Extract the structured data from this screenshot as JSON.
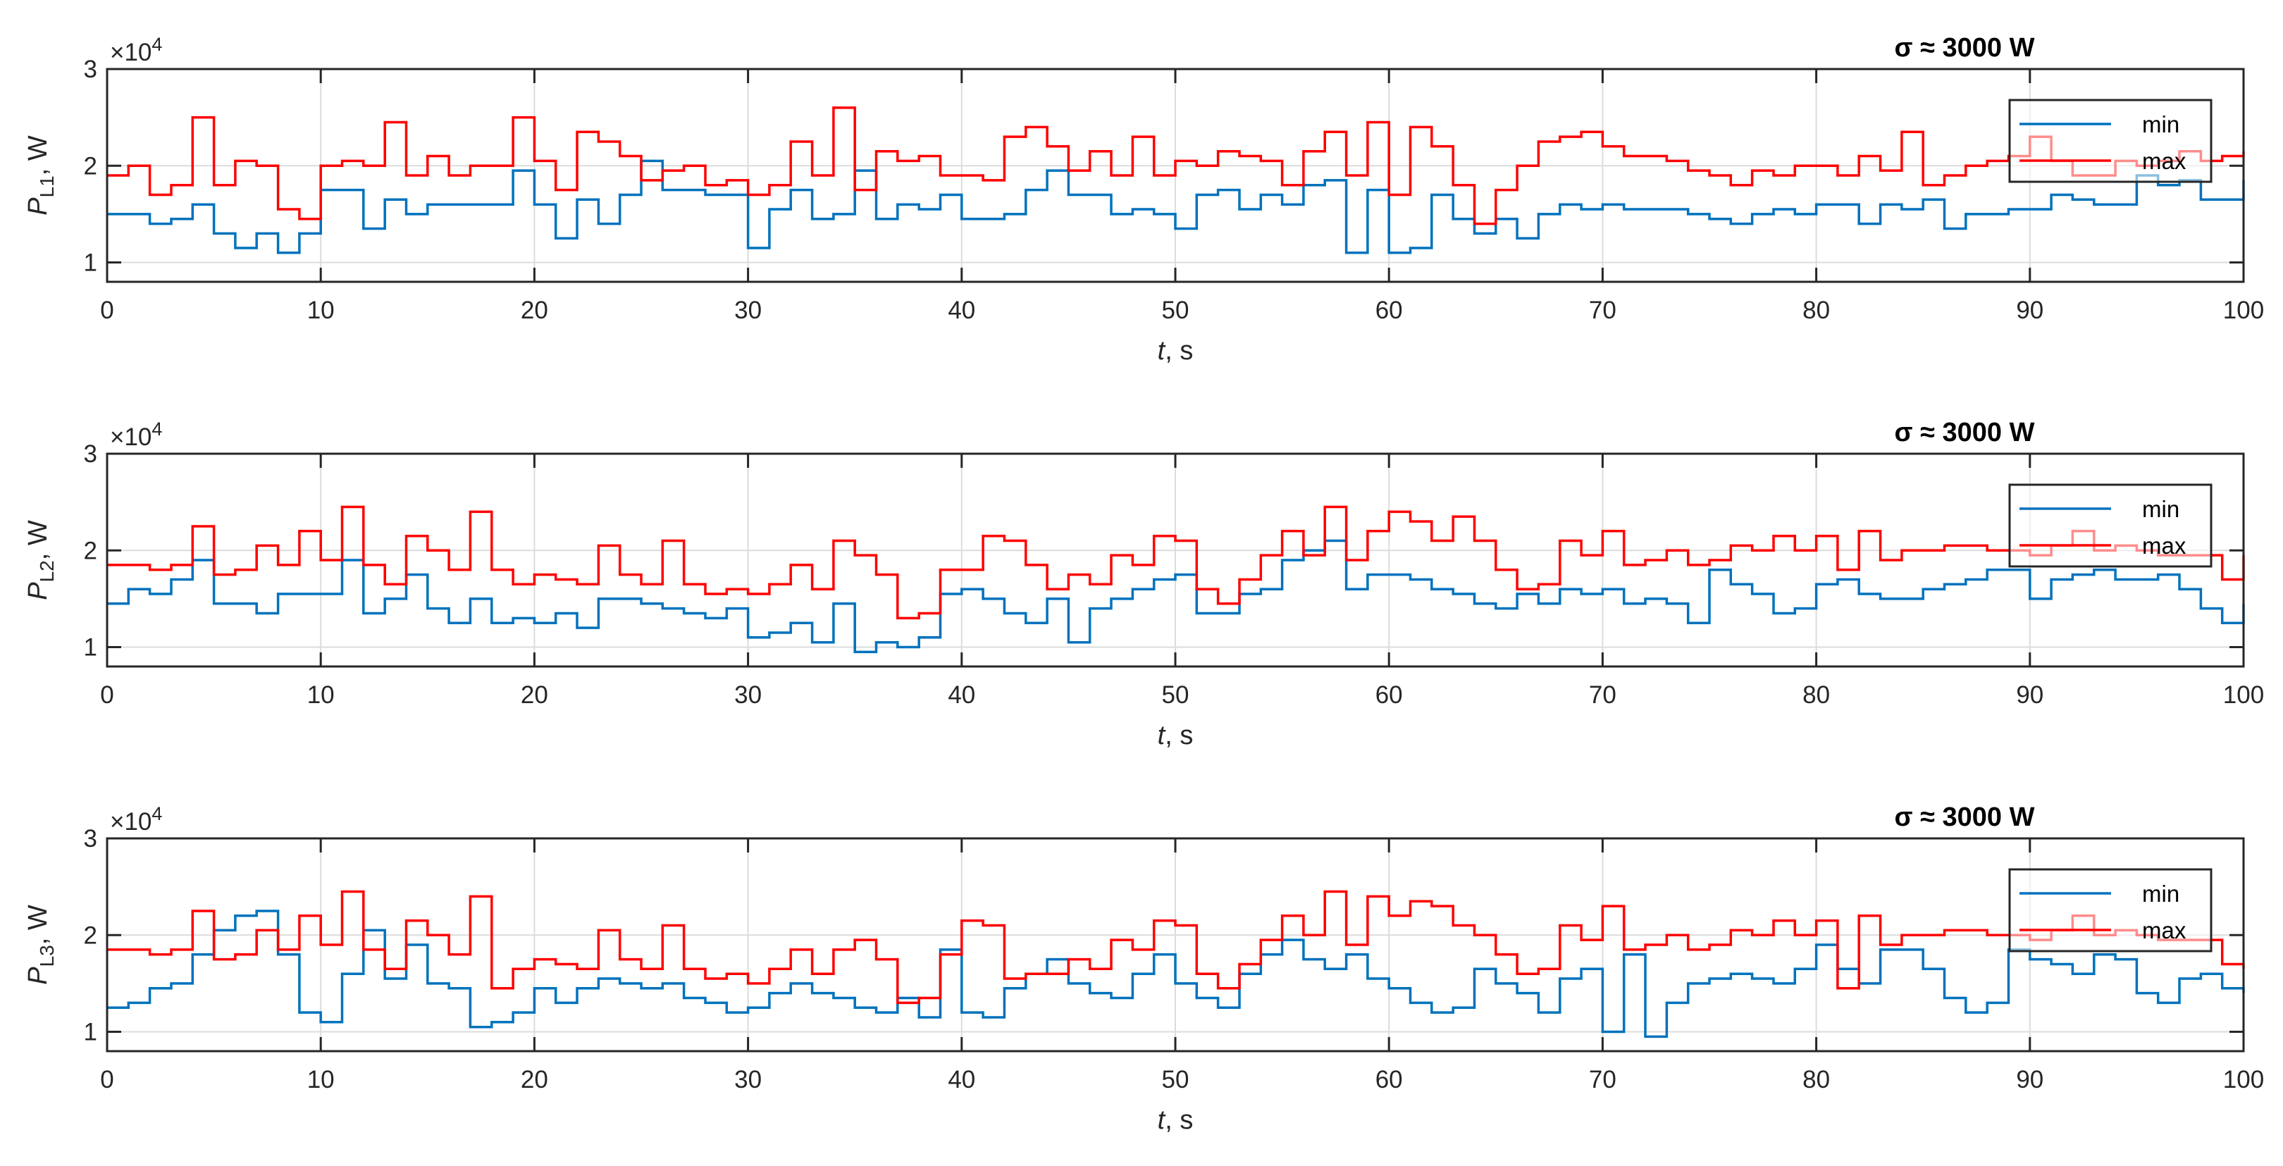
{
  "chart_data": [
    {
      "type": "line",
      "title": "σ ≈  3000 W",
      "ylabel_main": "P",
      "ylabel_sub": "L1",
      "ylabel_unit": ", W",
      "xlabel_var": "t",
      "xlabel_unit": ", s",
      "xlim": [
        0,
        100
      ],
      "ylim": [
        0.8,
        3.0
      ],
      "y_multiplier": "×10",
      "y_multiplier_exp": "4",
      "xticks": [
        "0",
        "10",
        "20",
        "30",
        "40",
        "50",
        "60",
        "70",
        "80",
        "90",
        "100"
      ],
      "yticks": [
        "1",
        "2",
        "3"
      ],
      "legend": {
        "entries": [
          "min",
          "max"
        ],
        "location": "northeast"
      },
      "grid": true,
      "series": [
        {
          "name": "min",
          "color": "#0072BD",
          "step": 1,
          "values": [
            1.5,
            1.5,
            1.4,
            1.45,
            1.6,
            1.3,
            1.15,
            1.3,
            1.1,
            1.3,
            1.75,
            1.75,
            1.35,
            1.65,
            1.5,
            1.6,
            1.6,
            1.6,
            1.6,
            1.95,
            1.6,
            1.25,
            1.65,
            1.4,
            1.7,
            2.05,
            1.75,
            1.75,
            1.7,
            1.7,
            1.15,
            1.55,
            1.75,
            1.45,
            1.5,
            1.95,
            1.45,
            1.6,
            1.55,
            1.7,
            1.45,
            1.45,
            1.5,
            1.75,
            1.95,
            1.7,
            1.7,
            1.5,
            1.55,
            1.5,
            1.35,
            1.7,
            1.75,
            1.55,
            1.7,
            1.6,
            1.8,
            1.85,
            1.1,
            1.75,
            1.1,
            1.15,
            1.7,
            1.45,
            1.3,
            1.45,
            1.25,
            1.5,
            1.6,
            1.55,
            1.6,
            1.55,
            1.55,
            1.55,
            1.5,
            1.45,
            1.4,
            1.5,
            1.55,
            1.5,
            1.6,
            1.6,
            1.4,
            1.6,
            1.55,
            1.65,
            1.35,
            1.5,
            1.5,
            1.55,
            1.55,
            1.7,
            1.65,
            1.6,
            1.6,
            1.9,
            1.8,
            1.85,
            1.65,
            1.65,
            1.85
          ]
        },
        {
          "name": "max",
          "color": "#FF0000",
          "step": 1,
          "values": [
            1.9,
            2.0,
            1.7,
            1.8,
            2.5,
            1.8,
            2.05,
            2.0,
            1.55,
            1.45,
            2.0,
            2.05,
            2.0,
            2.45,
            1.9,
            2.1,
            1.9,
            2.0,
            2.0,
            2.5,
            2.05,
            1.75,
            2.35,
            2.25,
            2.1,
            1.85,
            1.95,
            2.0,
            1.8,
            1.85,
            1.7,
            1.8,
            2.25,
            1.9,
            2.6,
            1.75,
            2.15,
            2.05,
            2.1,
            1.9,
            1.9,
            1.85,
            2.3,
            2.4,
            2.2,
            1.95,
            2.15,
            1.9,
            2.3,
            1.9,
            2.05,
            2.0,
            2.15,
            2.1,
            2.05,
            1.8,
            2.15,
            2.35,
            1.9,
            2.45,
            1.7,
            2.4,
            2.2,
            1.8,
            1.4,
            1.75,
            2.0,
            2.25,
            2.3,
            2.35,
            2.2,
            2.1,
            2.1,
            2.05,
            1.95,
            1.9,
            1.8,
            1.95,
            1.9,
            2.0,
            2.0,
            1.9,
            2.1,
            1.95,
            2.35,
            1.8,
            1.9,
            2.0,
            2.05,
            2.1,
            2.3,
            2.05,
            1.9,
            1.9,
            2.05,
            2.0,
            2.05,
            2.15,
            2.05,
            2.1,
            2.15
          ]
        }
      ]
    },
    {
      "type": "line",
      "title": "σ ≈  3000 W",
      "ylabel_main": "P",
      "ylabel_sub": "L2",
      "ylabel_unit": ", W",
      "xlabel_var": "t",
      "xlabel_unit": ", s",
      "xlim": [
        0,
        100
      ],
      "ylim": [
        0.8,
        3.0
      ],
      "y_multiplier": "×10",
      "y_multiplier_exp": "4",
      "xticks": [
        "0",
        "10",
        "20",
        "30",
        "40",
        "50",
        "60",
        "70",
        "80",
        "90",
        "100"
      ],
      "yticks": [
        "1",
        "2",
        "3"
      ],
      "legend": {
        "entries": [
          "min",
          "max"
        ],
        "location": "northeast"
      },
      "grid": true,
      "series": [
        {
          "name": "min",
          "color": "#0072BD",
          "step": 1,
          "values": [
            1.45,
            1.6,
            1.55,
            1.7,
            1.9,
            1.45,
            1.45,
            1.35,
            1.55,
            1.55,
            1.55,
            1.9,
            1.35,
            1.5,
            1.75,
            1.4,
            1.25,
            1.5,
            1.25,
            1.3,
            1.25,
            1.35,
            1.2,
            1.5,
            1.5,
            1.45,
            1.4,
            1.35,
            1.3,
            1.4,
            1.1,
            1.15,
            1.25,
            1.05,
            1.45,
            0.95,
            1.05,
            1.0,
            1.1,
            1.55,
            1.6,
            1.5,
            1.35,
            1.25,
            1.5,
            1.05,
            1.4,
            1.5,
            1.6,
            1.7,
            1.75,
            1.35,
            1.35,
            1.55,
            1.6,
            1.9,
            2.0,
            2.1,
            1.6,
            1.75,
            1.75,
            1.7,
            1.6,
            1.55,
            1.45,
            1.4,
            1.55,
            1.45,
            1.6,
            1.55,
            1.6,
            1.45,
            1.5,
            1.45,
            1.25,
            1.8,
            1.65,
            1.55,
            1.35,
            1.4,
            1.65,
            1.7,
            1.55,
            1.5,
            1.5,
            1.6,
            1.65,
            1.7,
            1.8,
            1.8,
            1.5,
            1.7,
            1.75,
            1.8,
            1.7,
            1.7,
            1.75,
            1.6,
            1.4,
            1.25,
            1.45
          ]
        },
        {
          "name": "max",
          "color": "#FF0000",
          "step": 1,
          "values": [
            1.85,
            1.85,
            1.8,
            1.85,
            2.25,
            1.75,
            1.8,
            2.05,
            1.85,
            2.2,
            1.9,
            2.45,
            1.85,
            1.65,
            2.15,
            2.0,
            1.8,
            2.4,
            1.8,
            1.65,
            1.75,
            1.7,
            1.65,
            2.05,
            1.75,
            1.65,
            2.1,
            1.65,
            1.55,
            1.6,
            1.55,
            1.65,
            1.85,
            1.6,
            2.1,
            1.95,
            1.75,
            1.3,
            1.35,
            1.8,
            1.8,
            2.15,
            2.1,
            1.85,
            1.6,
            1.75,
            1.65,
            1.95,
            1.85,
            2.15,
            2.1,
            1.6,
            1.45,
            1.7,
            1.95,
            2.2,
            1.95,
            2.45,
            1.9,
            2.2,
            2.4,
            2.3,
            2.1,
            2.35,
            2.1,
            1.8,
            1.6,
            1.65,
            2.1,
            1.95,
            2.2,
            1.85,
            1.9,
            2.0,
            1.85,
            1.9,
            2.05,
            2.0,
            2.15,
            2.0,
            2.15,
            1.8,
            2.2,
            1.9,
            2.0,
            2.0,
            2.05,
            2.05,
            2.0,
            2.0,
            1.95,
            2.05,
            2.2,
            2.0,
            2.05,
            2.0,
            1.95,
            1.95,
            1.95,
            1.7,
            1.95
          ]
        }
      ]
    },
    {
      "type": "line",
      "title": "σ ≈  3000 W",
      "ylabel_main": "P",
      "ylabel_sub": "L3",
      "ylabel_unit": ", W",
      "xlabel_var": "t",
      "xlabel_unit": ", s",
      "xlim": [
        0,
        100
      ],
      "ylim": [
        0.8,
        3.0
      ],
      "y_multiplier": "×10",
      "y_multiplier_exp": "4",
      "xticks": [
        "0",
        "10",
        "20",
        "30",
        "40",
        "50",
        "60",
        "70",
        "80",
        "90",
        "100"
      ],
      "yticks": [
        "1",
        "2",
        "3"
      ],
      "legend": {
        "entries": [
          "min",
          "max"
        ],
        "location": "northeast"
      },
      "grid": true,
      "series": [
        {
          "name": "min",
          "color": "#0072BD",
          "step": 1,
          "values": [
            1.25,
            1.3,
            1.45,
            1.5,
            1.8,
            2.05,
            2.2,
            2.25,
            1.8,
            1.2,
            1.1,
            1.6,
            2.05,
            1.55,
            1.9,
            1.5,
            1.45,
            1.05,
            1.1,
            1.2,
            1.45,
            1.3,
            1.45,
            1.55,
            1.5,
            1.45,
            1.5,
            1.35,
            1.3,
            1.2,
            1.25,
            1.4,
            1.5,
            1.4,
            1.35,
            1.25,
            1.2,
            1.35,
            1.15,
            1.85,
            1.2,
            1.15,
            1.45,
            1.6,
            1.75,
            1.5,
            1.4,
            1.35,
            1.6,
            1.8,
            1.5,
            1.35,
            1.25,
            1.6,
            1.8,
            1.95,
            1.75,
            1.65,
            1.8,
            1.55,
            1.45,
            1.3,
            1.2,
            1.25,
            1.65,
            1.5,
            1.4,
            1.2,
            1.55,
            1.65,
            1.0,
            1.8,
            0.95,
            1.3,
            1.5,
            1.55,
            1.6,
            1.55,
            1.5,
            1.65,
            1.9,
            1.65,
            1.5,
            1.85,
            1.85,
            1.65,
            1.35,
            1.2,
            1.3,
            1.85,
            1.75,
            1.7,
            1.6,
            1.8,
            1.75,
            1.4,
            1.3,
            1.55,
            1.6,
            1.45,
            1.4
          ]
        },
        {
          "name": "max",
          "color": "#FF0000",
          "step": 1,
          "values": [
            1.85,
            1.85,
            1.8,
            1.85,
            2.25,
            1.75,
            1.8,
            2.05,
            1.85,
            2.2,
            1.9,
            2.45,
            1.85,
            1.65,
            2.15,
            2.0,
            1.8,
            2.4,
            1.45,
            1.65,
            1.75,
            1.7,
            1.65,
            2.05,
            1.75,
            1.65,
            2.1,
            1.65,
            1.55,
            1.6,
            1.5,
            1.65,
            1.85,
            1.6,
            1.85,
            1.95,
            1.75,
            1.3,
            1.35,
            1.8,
            2.15,
            2.1,
            1.55,
            1.6,
            1.6,
            1.75,
            1.65,
            1.95,
            1.85,
            2.15,
            2.1,
            1.6,
            1.45,
            1.7,
            1.95,
            2.2,
            2.0,
            2.45,
            1.9,
            2.4,
            2.2,
            2.35,
            2.3,
            2.1,
            2.0,
            1.8,
            1.6,
            1.65,
            2.1,
            1.95,
            2.3,
            1.85,
            1.9,
            2.0,
            1.85,
            1.9,
            2.05,
            2.0,
            2.15,
            2.0,
            2.15,
            1.45,
            2.2,
            1.9,
            2.0,
            2.0,
            2.05,
            2.05,
            2.0,
            2.0,
            1.95,
            2.05,
            2.2,
            2.0,
            2.05,
            2.0,
            1.95,
            1.95,
            1.95,
            1.7,
            1.65
          ]
        }
      ]
    }
  ]
}
